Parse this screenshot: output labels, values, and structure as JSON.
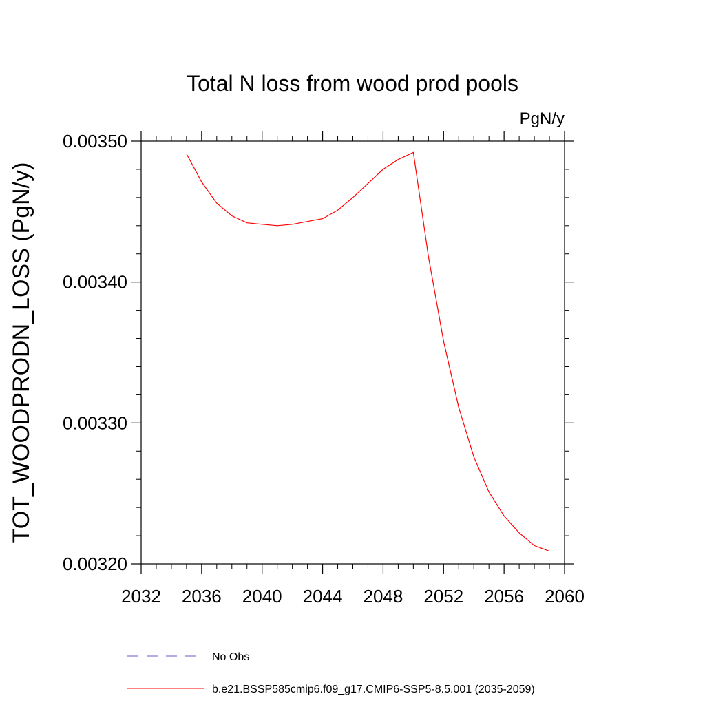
{
  "chart_data": {
    "type": "line",
    "title": "Total N loss from wood prod pools",
    "units_label": "PgN/y",
    "ylabel": "TOT_WOODPRODN_LOSS  (PgN/y)",
    "xlabel": "",
    "xlim": [
      2032,
      2060
    ],
    "ylim": [
      0.0032,
      0.0035
    ],
    "x_ticks": [
      2032,
      2036,
      2040,
      2044,
      2048,
      2052,
      2056,
      2060
    ],
    "x_tick_labels": [
      "2032",
      "2036",
      "2040",
      "2044",
      "2048",
      "2052",
      "2056",
      "2060"
    ],
    "y_ticks": [
      0.0032,
      0.0033,
      0.0034,
      0.0035
    ],
    "y_tick_labels": [
      "0.00320",
      "0.00330",
      "0.00340",
      "0.00350"
    ],
    "grid": false,
    "legend_position": "bottom",
    "series": [
      {
        "name": "No Obs",
        "color": "#6a5acd",
        "dash": "dashed",
        "x": [],
        "values": []
      },
      {
        "name": "b.e21.BSSP585cmip6.f09_g17.CMIP6-SSP5-8.5.001 (2035-2059)",
        "color": "#ff0000",
        "dash": "solid",
        "x": [
          2035,
          2036,
          2037,
          2038,
          2039,
          2040,
          2041,
          2042,
          2043,
          2044,
          2045,
          2046,
          2047,
          2048,
          2049,
          2050,
          2051,
          2052,
          2053,
          2054,
          2055,
          2056,
          2057,
          2058,
          2059
        ],
        "values": [
          0.003491,
          0.003471,
          0.003456,
          0.003447,
          0.003442,
          0.003441,
          0.00344,
          0.003441,
          0.003443,
          0.003445,
          0.003451,
          0.00346,
          0.00347,
          0.00348,
          0.003487,
          0.003492,
          0.003418,
          0.003358,
          0.003311,
          0.003276,
          0.003251,
          0.003234,
          0.003222,
          0.003213,
          0.003209
        ]
      }
    ]
  }
}
